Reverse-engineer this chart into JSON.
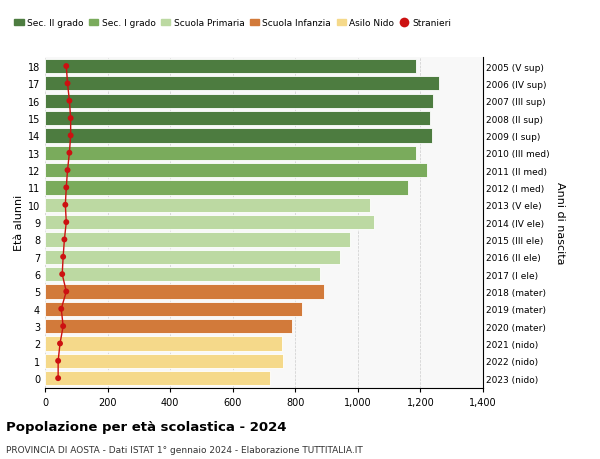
{
  "ages": [
    18,
    17,
    16,
    15,
    14,
    13,
    12,
    11,
    10,
    9,
    8,
    7,
    6,
    5,
    4,
    3,
    2,
    1,
    0
  ],
  "right_labels": [
    "2005 (V sup)",
    "2006 (IV sup)",
    "2007 (III sup)",
    "2008 (II sup)",
    "2009 (I sup)",
    "2010 (III med)",
    "2011 (II med)",
    "2012 (I med)",
    "2013 (V ele)",
    "2014 (IV ele)",
    "2015 (III ele)",
    "2016 (II ele)",
    "2017 (I ele)",
    "2018 (mater)",
    "2019 (mater)",
    "2020 (mater)",
    "2021 (nido)",
    "2022 (nido)",
    "2023 (nido)"
  ],
  "bar_values": [
    1185,
    1258,
    1240,
    1230,
    1238,
    1185,
    1220,
    1160,
    1038,
    1052,
    975,
    942,
    878,
    892,
    820,
    788,
    758,
    762,
    718
  ],
  "stranieri_values": [
    68,
    72,
    78,
    82,
    82,
    78,
    72,
    68,
    65,
    68,
    62,
    58,
    55,
    68,
    52,
    58,
    48,
    42,
    42
  ],
  "bar_colors": [
    "#4d7c40",
    "#4d7c40",
    "#4d7c40",
    "#4d7c40",
    "#4d7c40",
    "#7aab5c",
    "#7aab5c",
    "#7aab5c",
    "#bcd9a2",
    "#bcd9a2",
    "#bcd9a2",
    "#bcd9a2",
    "#bcd9a2",
    "#d27a3a",
    "#d27a3a",
    "#d27a3a",
    "#f5d98a",
    "#f5d98a",
    "#f5d98a"
  ],
  "legend_labels": [
    "Sec. II grado",
    "Sec. I grado",
    "Scuola Primaria",
    "Scuola Infanzia",
    "Asilo Nido",
    "Stranieri"
  ],
  "legend_colors": [
    "#4d7c40",
    "#7aab5c",
    "#bcd9a2",
    "#d27a3a",
    "#f5d98a",
    "#cc1111"
  ],
  "title": "Popolazione per età scolastica - 2024",
  "subtitle": "PROVINCIA DI AOSTA - Dati ISTAT 1° gennaio 2024 - Elaborazione TUTTITALIA.IT",
  "ylabel_left": "Età alunni",
  "ylabel_right": "Anni di nascita",
  "xlim": [
    0,
    1400
  ],
  "xticks": [
    0,
    200,
    400,
    600,
    800,
    1000,
    1200,
    1400
  ],
  "xtick_labels": [
    "0",
    "200",
    "400",
    "600",
    "800",
    "1,000",
    "1,200",
    "1,400"
  ],
  "bar_height": 0.82,
  "stranieri_dot_color": "#cc1111",
  "stranieri_line_color": "#cc1111"
}
